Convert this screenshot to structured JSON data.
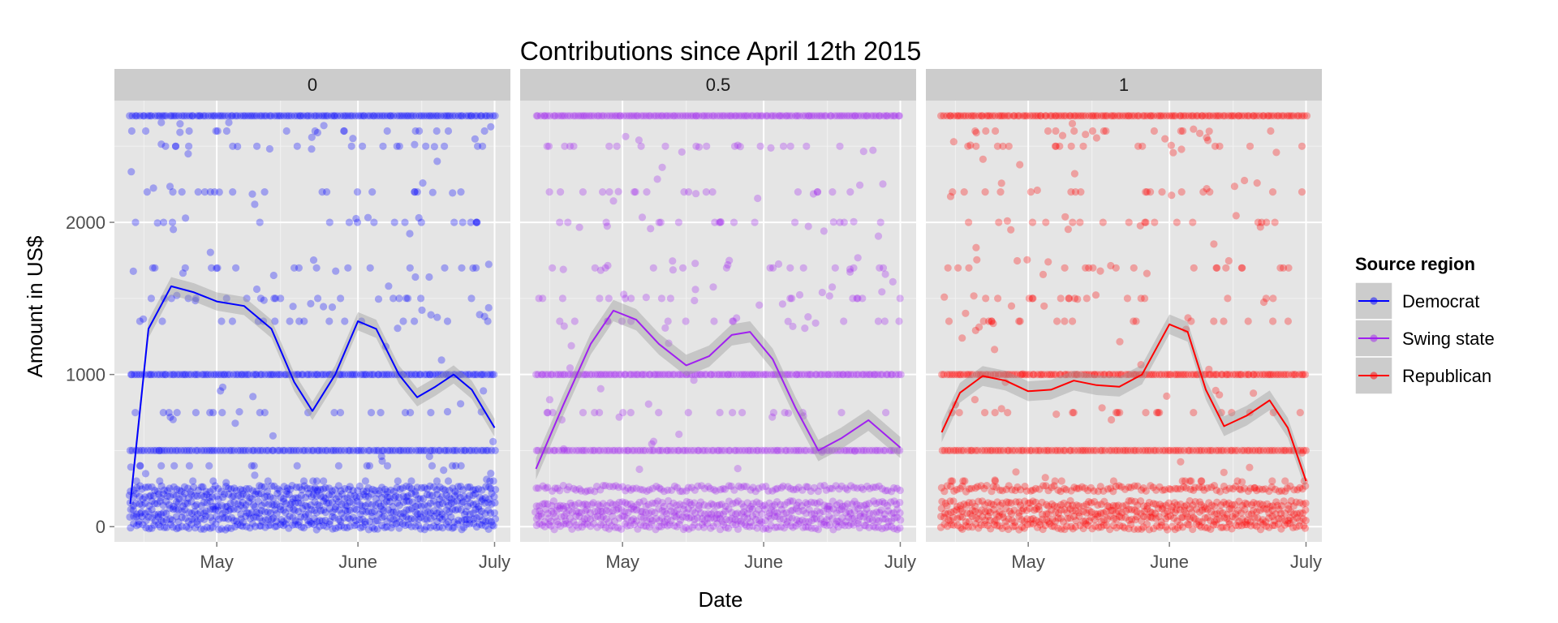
{
  "chart_data": {
    "type": "scatter",
    "title": "Contributions since April 12th 2015",
    "xlabel": "Date",
    "ylabel": "Amount in US$",
    "x_range": [
      "2015-04-12",
      "2015-07-01"
    ],
    "ylim": [
      -100,
      2800
    ],
    "x_ticks": [
      {
        "date": "2015-05-01",
        "label": "May"
      },
      {
        "date": "2015-06-01",
        "label": "June"
      },
      {
        "date": "2015-07-01",
        "label": "July"
      }
    ],
    "y_ticks": [
      0,
      1000,
      2000
    ],
    "facet_variable_values": [
      "0",
      "0.5",
      "1"
    ],
    "legend": {
      "title": "Source region",
      "position": "right",
      "entries": [
        {
          "label": "Democrat",
          "color": "#0000ff"
        },
        {
          "label": "Swing state",
          "color": "#a020f0"
        },
        {
          "label": "Republican",
          "color": "#ff0000"
        }
      ]
    },
    "panels": [
      {
        "facet": "0",
        "series": "Democrat",
        "color": "#0000ff",
        "point_opacity": 0.3,
        "dense_amount_levels": [
          0,
          50,
          100,
          150,
          200,
          250,
          500,
          1000,
          2700
        ],
        "scattered_amount_levels": [
          300,
          400,
          750,
          1350,
          1500,
          1700,
          2000,
          2200,
          2500,
          2600
        ],
        "smooth_line": [
          [
            "2015-04-12",
            150
          ],
          [
            "2015-04-16",
            1300
          ],
          [
            "2015-04-21",
            1580
          ],
          [
            "2015-04-26",
            1540
          ],
          [
            "2015-05-01",
            1480
          ],
          [
            "2015-05-07",
            1450
          ],
          [
            "2015-05-13",
            1300
          ],
          [
            "2015-05-18",
            950
          ],
          [
            "2015-05-22",
            760
          ],
          [
            "2015-05-27",
            1000
          ],
          [
            "2015-06-01",
            1350
          ],
          [
            "2015-06-05",
            1300
          ],
          [
            "2015-06-10",
            1000
          ],
          [
            "2015-06-14",
            850
          ],
          [
            "2015-06-18",
            920
          ],
          [
            "2015-06-22",
            1000
          ],
          [
            "2015-06-26",
            900
          ],
          [
            "2015-07-01",
            650
          ]
        ],
        "band_half_width": 60
      },
      {
        "facet": "0.5",
        "series": "Swing state",
        "color": "#a020f0",
        "point_opacity": 0.3,
        "dense_amount_levels": [
          0,
          50,
          100,
          150,
          250,
          500,
          1000,
          2700
        ],
        "scattered_amount_levels": [
          750,
          1350,
          1500,
          1700,
          2000,
          2200,
          2500
        ],
        "smooth_line": [
          [
            "2015-04-12",
            380
          ],
          [
            "2015-04-18",
            800
          ],
          [
            "2015-04-24",
            1200
          ],
          [
            "2015-04-29",
            1420
          ],
          [
            "2015-05-04",
            1360
          ],
          [
            "2015-05-09",
            1200
          ],
          [
            "2015-05-15",
            1060
          ],
          [
            "2015-05-20",
            1120
          ],
          [
            "2015-05-25",
            1260
          ],
          [
            "2015-05-29",
            1280
          ],
          [
            "2015-06-03",
            1100
          ],
          [
            "2015-06-08",
            780
          ],
          [
            "2015-06-13",
            500
          ],
          [
            "2015-06-18",
            580
          ],
          [
            "2015-06-24",
            700
          ],
          [
            "2015-07-01",
            520
          ]
        ],
        "band_half_width": 70
      },
      {
        "facet": "1",
        "series": "Republican",
        "color": "#ff0000",
        "point_opacity": 0.3,
        "dense_amount_levels": [
          0,
          50,
          100,
          150,
          250,
          500,
          1000,
          2700
        ],
        "scattered_amount_levels": [
          300,
          750,
          1350,
          1500,
          1700,
          2000,
          2200,
          2500,
          2600
        ],
        "smooth_line": [
          [
            "2015-04-12",
            620
          ],
          [
            "2015-04-16",
            880
          ],
          [
            "2015-04-21",
            990
          ],
          [
            "2015-04-26",
            960
          ],
          [
            "2015-05-01",
            890
          ],
          [
            "2015-05-06",
            900
          ],
          [
            "2015-05-11",
            960
          ],
          [
            "2015-05-16",
            930
          ],
          [
            "2015-05-21",
            920
          ],
          [
            "2015-05-26",
            1000
          ],
          [
            "2015-06-01",
            1330
          ],
          [
            "2015-06-05",
            1280
          ],
          [
            "2015-06-09",
            900
          ],
          [
            "2015-06-13",
            660
          ],
          [
            "2015-06-18",
            730
          ],
          [
            "2015-06-23",
            830
          ],
          [
            "2015-06-27",
            650
          ],
          [
            "2015-07-01",
            300
          ]
        ],
        "band_half_width": 65
      }
    ]
  }
}
